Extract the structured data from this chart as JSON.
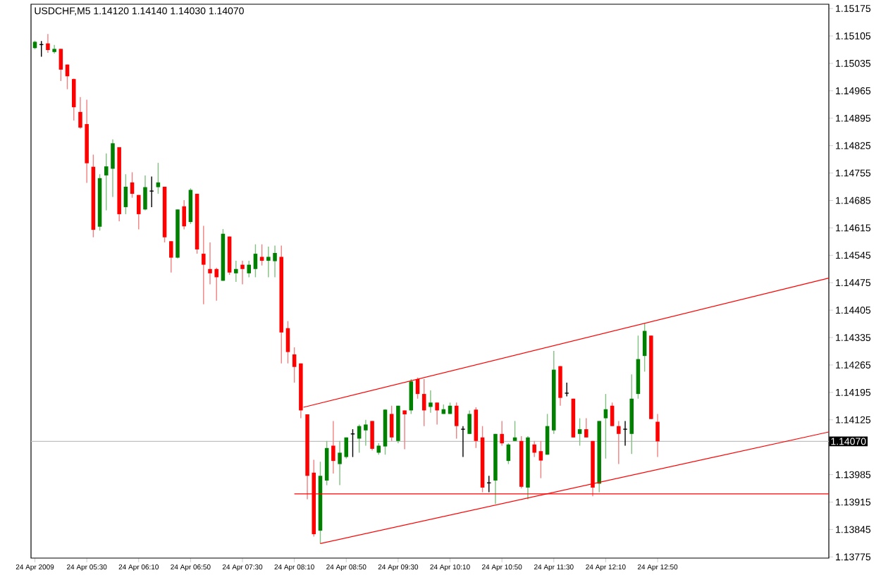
{
  "chart_data": {
    "type": "candlestick",
    "title": "USDCHF,M5 1.14120 1.14140 1.14030 1.14070",
    "x": [
      "2009-04-24T04:50",
      "2009-04-24T04:55",
      "2009-04-24T05:00",
      "2009-04-24T05:05",
      "2009-04-24T05:10",
      "2009-04-24T05:15",
      "2009-04-24T05:20",
      "2009-04-24T05:25",
      "2009-04-24T05:30",
      "2009-04-24T05:35",
      "2009-04-24T05:40",
      "2009-04-24T05:45",
      "2009-04-24T05:50",
      "2009-04-24T05:55",
      "2009-04-24T06:00",
      "2009-04-24T06:05",
      "2009-04-24T06:10",
      "2009-04-24T06:15",
      "2009-04-24T06:20",
      "2009-04-24T06:25",
      "2009-04-24T06:30",
      "2009-04-24T06:35",
      "2009-04-24T06:40",
      "2009-04-24T06:45",
      "2009-04-24T06:50",
      "2009-04-24T06:55",
      "2009-04-24T07:00",
      "2009-04-24T07:05",
      "2009-04-24T07:10",
      "2009-04-24T07:15",
      "2009-04-24T07:20",
      "2009-04-24T07:25",
      "2009-04-24T07:30",
      "2009-04-24T07:35",
      "2009-04-24T07:40",
      "2009-04-24T07:45",
      "2009-04-24T07:50",
      "2009-04-24T07:55",
      "2009-04-24T08:00",
      "2009-04-24T08:05",
      "2009-04-24T08:10",
      "2009-04-24T08:15",
      "2009-04-24T08:20",
      "2009-04-24T08:25",
      "2009-04-24T08:30",
      "2009-04-24T08:35",
      "2009-04-24T08:40",
      "2009-04-24T08:45",
      "2009-04-24T08:50",
      "2009-04-24T08:55",
      "2009-04-24T09:00",
      "2009-04-24T09:05",
      "2009-04-24T09:10",
      "2009-04-24T09:15",
      "2009-04-24T09:20",
      "2009-04-24T09:25",
      "2009-04-24T09:30",
      "2009-04-24T09:35",
      "2009-04-24T09:40",
      "2009-04-24T09:45",
      "2009-04-24T09:50",
      "2009-04-24T09:55",
      "2009-04-24T10:00",
      "2009-04-24T10:05",
      "2009-04-24T10:10",
      "2009-04-24T10:15",
      "2009-04-24T10:20",
      "2009-04-24T10:25",
      "2009-04-24T10:30",
      "2009-04-24T10:35",
      "2009-04-24T10:40",
      "2009-04-24T10:45",
      "2009-04-24T10:50",
      "2009-04-24T10:55",
      "2009-04-24T11:00",
      "2009-04-24T11:05",
      "2009-04-24T11:10",
      "2009-04-24T11:15",
      "2009-04-24T11:20",
      "2009-04-24T11:25",
      "2009-04-24T11:30",
      "2009-04-24T11:35",
      "2009-04-24T11:40",
      "2009-04-24T11:45",
      "2009-04-24T11:50",
      "2009-04-24T11:55",
      "2009-04-24T12:00",
      "2009-04-24T12:05",
      "2009-04-24T12:10",
      "2009-04-24T12:15",
      "2009-04-24T12:20",
      "2009-04-24T12:25",
      "2009-04-24T12:30",
      "2009-04-24T12:35",
      "2009-04-24T12:40",
      "2009-04-24T12:45",
      "2009-04-24T12:50"
    ],
    "ohlc": [
      [
        1.15074,
        1.15093,
        1.15071,
        1.1509
      ],
      [
        1.15083,
        1.15092,
        1.15052,
        1.15083
      ],
      [
        1.15086,
        1.1511,
        1.15062,
        1.15069
      ],
      [
        1.15064,
        1.15082,
        1.1506,
        1.15072
      ],
      [
        1.15072,
        1.15072,
        1.1499,
        1.15019
      ],
      [
        1.15032,
        1.15032,
        1.14969,
        1.15002
      ],
      [
        1.14995,
        1.14996,
        1.14889,
        1.14923
      ],
      [
        1.14911,
        1.14949,
        1.14868,
        1.14871
      ],
      [
        1.1488,
        1.14942,
        1.1473,
        1.1478
      ],
      [
        1.14771,
        1.14802,
        1.14591,
        1.1461
      ],
      [
        1.14618,
        1.14752,
        1.14608,
        1.14742
      ],
      [
        1.14749,
        1.14805,
        1.1466,
        1.14772
      ],
      [
        1.14766,
        1.14841,
        1.14694,
        1.14831
      ],
      [
        1.14821,
        1.14821,
        1.14632,
        1.1465
      ],
      [
        1.14668,
        1.14752,
        1.1465,
        1.1472
      ],
      [
        1.14731,
        1.14757,
        1.14692,
        1.14702
      ],
      [
        1.14699,
        1.14699,
        1.14611,
        1.1465
      ],
      [
        1.14662,
        1.14749,
        1.1466,
        1.14719
      ],
      [
        1.14709,
        1.14746,
        1.14668,
        1.14709
      ],
      [
        1.14719,
        1.14781,
        1.14702,
        1.14731
      ],
      [
        1.1472,
        1.1472,
        1.14578,
        1.14591
      ],
      [
        1.14581,
        1.14581,
        1.14501,
        1.14539
      ],
      [
        1.14539,
        1.14662,
        1.14537,
        1.14662
      ],
      [
        1.1467,
        1.14686,
        1.14611,
        1.14619
      ],
      [
        1.1463,
        1.14716,
        1.14625,
        1.14712
      ],
      [
        1.14702,
        1.14702,
        1.14549,
        1.1456
      ],
      [
        1.14549,
        1.1462,
        1.1442,
        1.14521
      ],
      [
        1.1451,
        1.14578,
        1.14471,
        1.14499
      ],
      [
        1.1451,
        1.14513,
        1.14429,
        1.14489
      ],
      [
        1.1448,
        1.14612,
        1.1448,
        1.146
      ],
      [
        1.14593,
        1.14593,
        1.14495,
        1.14501
      ],
      [
        1.14499,
        1.14531,
        1.14477,
        1.1451
      ],
      [
        1.14521,
        1.14531,
        1.14471,
        1.1451
      ],
      [
        1.14499,
        1.14531,
        1.14489,
        1.14521
      ],
      [
        1.1451,
        1.14573,
        1.14489,
        1.14549
      ],
      [
        1.14541,
        1.14573,
        1.14519,
        1.14531
      ],
      [
        1.14531,
        1.14567,
        1.14489,
        1.14541
      ],
      [
        1.1453,
        1.1457,
        1.14489,
        1.14551
      ],
      [
        1.14541,
        1.1457,
        1.14269,
        1.14348
      ],
      [
        1.14359,
        1.14377,
        1.14269,
        1.14298
      ],
      [
        1.14292,
        1.1431,
        1.1422,
        1.1426
      ],
      [
        1.14269,
        1.14269,
        1.14129,
        1.14149
      ],
      [
        1.14139,
        1.14139,
        1.13922,
        1.13982
      ],
      [
        1.1399,
        1.14023,
        1.13827,
        1.13833
      ],
      [
        1.13842,
        1.14018,
        1.13809,
        1.13982
      ],
      [
        1.1397,
        1.14071,
        1.13958,
        1.14053
      ],
      [
        1.14059,
        1.14122,
        1.13988,
        1.1402
      ],
      [
        1.14012,
        1.14071,
        1.13958,
        1.14041
      ],
      [
        1.1403,
        1.1408,
        1.14026,
        1.1408
      ],
      [
        1.14089,
        1.14101,
        1.1403,
        1.14089
      ],
      [
        1.14077,
        1.14113,
        1.14041,
        1.14109
      ],
      [
        1.14098,
        1.14125,
        1.14059,
        1.14113
      ],
      [
        1.14122,
        1.14122,
        1.14047,
        1.14051
      ],
      [
        1.14041,
        1.14065,
        1.14036,
        1.14059
      ],
      [
        1.14057,
        1.14152,
        1.14036,
        1.14151
      ],
      [
        1.1414,
        1.14161,
        1.14071,
        1.1408
      ],
      [
        1.14071,
        1.14161,
        1.14065,
        1.14161
      ],
      [
        1.14149,
        1.14149,
        1.1405,
        1.14139
      ],
      [
        1.14149,
        1.14229,
        1.1414,
        1.14223
      ],
      [
        1.14229,
        1.14233,
        1.14179,
        1.14191
      ],
      [
        1.14191,
        1.14229,
        1.14109,
        1.14149
      ],
      [
        1.14158,
        1.142,
        1.14143,
        1.14169
      ],
      [
        1.14169,
        1.14169,
        1.14113,
        1.14149
      ],
      [
        1.1414,
        1.14164,
        1.1414,
        1.14152
      ],
      [
        1.1414,
        1.14169,
        1.1414,
        1.14161
      ],
      [
        1.14161,
        1.14169,
        1.14077,
        1.14109
      ],
      [
        1.14101,
        1.14109,
        1.1403,
        1.14101
      ],
      [
        1.14089,
        1.14149,
        1.14089,
        1.1414
      ],
      [
        1.14151,
        1.14157,
        1.14053,
        1.14071
      ],
      [
        1.1408,
        1.14109,
        1.1394,
        1.13952
      ],
      [
        1.13964,
        1.13982,
        1.1394,
        1.13964
      ],
      [
        1.1397,
        1.14089,
        1.1391,
        1.14089
      ],
      [
        1.14089,
        1.14122,
        1.14059,
        1.14065
      ],
      [
        1.1402,
        1.14065,
        1.14012,
        1.14062
      ],
      [
        1.14071,
        1.14122,
        1.14071,
        1.1408
      ],
      [
        1.14071,
        1.14083,
        1.1395,
        1.13954
      ],
      [
        1.13952,
        1.14083,
        1.13922,
        1.1408
      ],
      [
        1.14062,
        1.14071,
        1.1403,
        1.14041
      ],
      [
        1.14045,
        1.14071,
        1.13976,
        1.14021
      ],
      [
        1.14036,
        1.1414,
        1.14036,
        1.14109
      ],
      [
        1.14098,
        1.14301,
        1.14089,
        1.14253
      ],
      [
        1.14262,
        1.14262,
        1.14161,
        1.14181
      ],
      [
        1.14193,
        1.1422,
        1.14185,
        1.14193
      ],
      [
        1.14179,
        1.14179,
        1.1408,
        1.1408
      ],
      [
        1.14089,
        1.14129,
        1.14059,
        1.14101
      ],
      [
        1.14101,
        1.14129,
        1.1408,
        1.1408
      ],
      [
        1.14071,
        1.14071,
        1.1393,
        1.13952
      ],
      [
        1.13962,
        1.14122,
        1.1394,
        1.14122
      ],
      [
        1.14129,
        1.14191,
        1.14026,
        1.14152
      ],
      [
        1.14161,
        1.14169,
        1.14109,
        1.14109
      ],
      [
        1.14109,
        1.14122,
        1.14012,
        1.14089
      ],
      [
        1.14101,
        1.14122,
        1.14059,
        1.14101
      ],
      [
        1.14089,
        1.14241,
        1.14038,
        1.14179
      ],
      [
        1.14191,
        1.1434,
        1.14179,
        1.1428
      ],
      [
        1.14288,
        1.14372,
        1.14248,
        1.14352
      ],
      [
        1.1434,
        1.1434,
        1.14127,
        1.14127
      ],
      [
        1.1412,
        1.1414,
        1.1403,
        1.1407
      ]
    ],
    "series": [
      {
        "type": "line",
        "color": "#ff0000",
        "x": [
          "2009-04-24T08:17",
          "2009-04-24T15:02"
        ],
        "values": [
          1.14157,
          1.14487
        ]
      },
      {
        "type": "line",
        "color": "#ff0000",
        "x": [
          "2009-04-24T08:30",
          "2009-04-24T15:02"
        ],
        "values": [
          1.13809,
          1.14094
        ]
      },
      {
        "type": "line",
        "color": "#ff0000",
        "x": [
          "2009-04-24T08:10",
          "2009-04-24T15:02"
        ],
        "values": [
          1.13936,
          1.13936
        ]
      }
    ],
    "ref_lines": [
      {
        "axis": "y",
        "value": 1.1407,
        "label": "1.14070",
        "color": "#c0c0c0"
      }
    ],
    "xlim": [
      "2009-04-24T04:47",
      "2009-04-24T15:02"
    ],
    "ylim": [
      1.13772,
      1.15186
    ],
    "xticks": [
      {
        "value": "2009-04-24T04:50",
        "label": "24 Apr 2009"
      },
      {
        "value": "2009-04-24T05:30",
        "label": "24 Apr 05:30"
      },
      {
        "value": "2009-04-24T06:10",
        "label": "24 Apr 06:10"
      },
      {
        "value": "2009-04-24T06:50",
        "label": "24 Apr 06:50"
      },
      {
        "value": "2009-04-24T07:30",
        "label": "24 Apr 07:30"
      },
      {
        "value": "2009-04-24T08:10",
        "label": "24 Apr 08:10"
      },
      {
        "value": "2009-04-24T08:50",
        "label": "24 Apr 08:50"
      },
      {
        "value": "2009-04-24T09:30",
        "label": "24 Apr 09:30"
      },
      {
        "value": "2009-04-24T10:10",
        "label": "24 Apr 10:10"
      },
      {
        "value": "2009-04-24T10:50",
        "label": "24 Apr 10:50"
      },
      {
        "value": "2009-04-24T11:30",
        "label": "24 Apr 11:30"
      },
      {
        "value": "2009-04-24T12:10",
        "label": "24 Apr 12:10"
      },
      {
        "value": "2009-04-24T12:50",
        "label": "24 Apr 12:50"
      }
    ],
    "yticks": [
      1.15175,
      1.15105,
      1.15035,
      1.14965,
      1.14895,
      1.14825,
      1.14755,
      1.14685,
      1.14615,
      1.14545,
      1.14475,
      1.14405,
      1.14335,
      1.14265,
      1.14195,
      1.14125,
      1.13985,
      1.13915,
      1.13845,
      1.13775
    ]
  }
}
